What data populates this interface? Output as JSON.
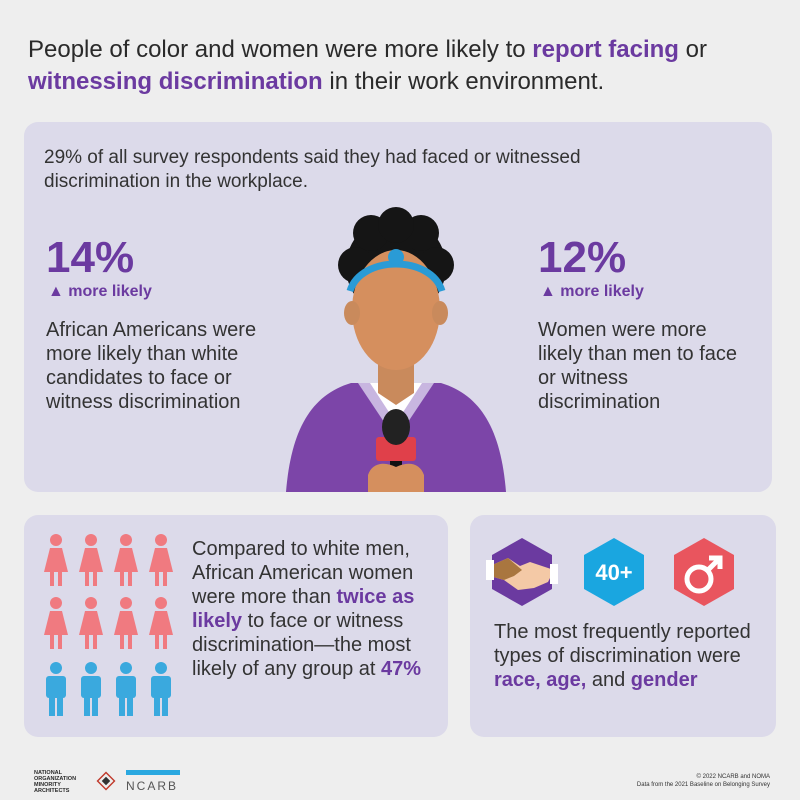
{
  "title": {
    "part1": "People of color and women were more likely to ",
    "highlight1": "report facing",
    "part2": " or ",
    "highlight2": "witnessing discrimination",
    "part3": " in their work environment."
  },
  "top_panel": {
    "intro": "29% of all survey respondents said they had faced or witnessed discrimination in the workplace.",
    "left_stat": {
      "percent": "14%",
      "sub": "▲ more likely",
      "description": "African Americans were more likely than white candidates to face or witness discrimination"
    },
    "right_stat": {
      "percent": "12%",
      "sub": "▲ more likely",
      "description": "Women were more likely than men to face or witness discrimination"
    }
  },
  "bottom_left": {
    "text1": "Compared to white men, African American women were more than ",
    "highlight1": "twice as likely",
    "text2": " to face or witness discrimination—the most likely of any group at ",
    "highlight2": "47%",
    "icon_colors": {
      "women": "#f07a80",
      "men": "#3aa9de"
    }
  },
  "bottom_right": {
    "badge_age_label": "40+",
    "text1": "The most frequently reported types of discrimination were ",
    "highlight1": "race,",
    "text2": " ",
    "highlight2": "age,",
    "text3": " and ",
    "highlight3": "gender"
  },
  "footer": {
    "noma_lines": [
      "NATIONAL",
      "ORGANIZATION",
      "MINORITY",
      "ARCHITECTS"
    ],
    "ncarb": "NCARB",
    "credit": "© 2022 NCARB and NOMA",
    "source": "Data from the 2021 Baseline on Belonging Survey"
  },
  "colors": {
    "accent": "#6b3aa0",
    "panel": "#dcdaea",
    "badge_blue": "#1aa6e0",
    "badge_red": "#e9555e",
    "badge_purple": "#6b3aa0"
  }
}
